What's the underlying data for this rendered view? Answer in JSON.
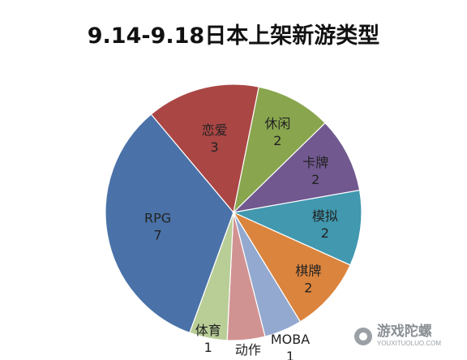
{
  "chart_data": {
    "type": "pie",
    "title": "9.14-9.18日本上架新游类型",
    "slices": [
      {
        "label": "RPG",
        "value": 7,
        "color": "#4A72A8"
      },
      {
        "label": "恋爱",
        "value": 3,
        "color": "#AA4644"
      },
      {
        "label": "休闲",
        "value": 2,
        "color": "#89A54E"
      },
      {
        "label": "卡牌",
        "value": 2,
        "color": "#71588F"
      },
      {
        "label": "模拟",
        "value": 2,
        "color": "#4198AF"
      },
      {
        "label": "棋牌",
        "value": 2,
        "color": "#DB843D"
      },
      {
        "label": "MOBA",
        "value": 1,
        "color": "#93A9CF"
      },
      {
        "label": "动作",
        "value": 1,
        "color": "#D19392"
      },
      {
        "label": "体育",
        "value": 1,
        "color": "#B9CD96"
      }
    ],
    "legend": "none",
    "data_labels": "category-and-value"
  },
  "watermark": {
    "name": "游戏陀螺",
    "url": "YOUXITUOLUO.COM"
  }
}
